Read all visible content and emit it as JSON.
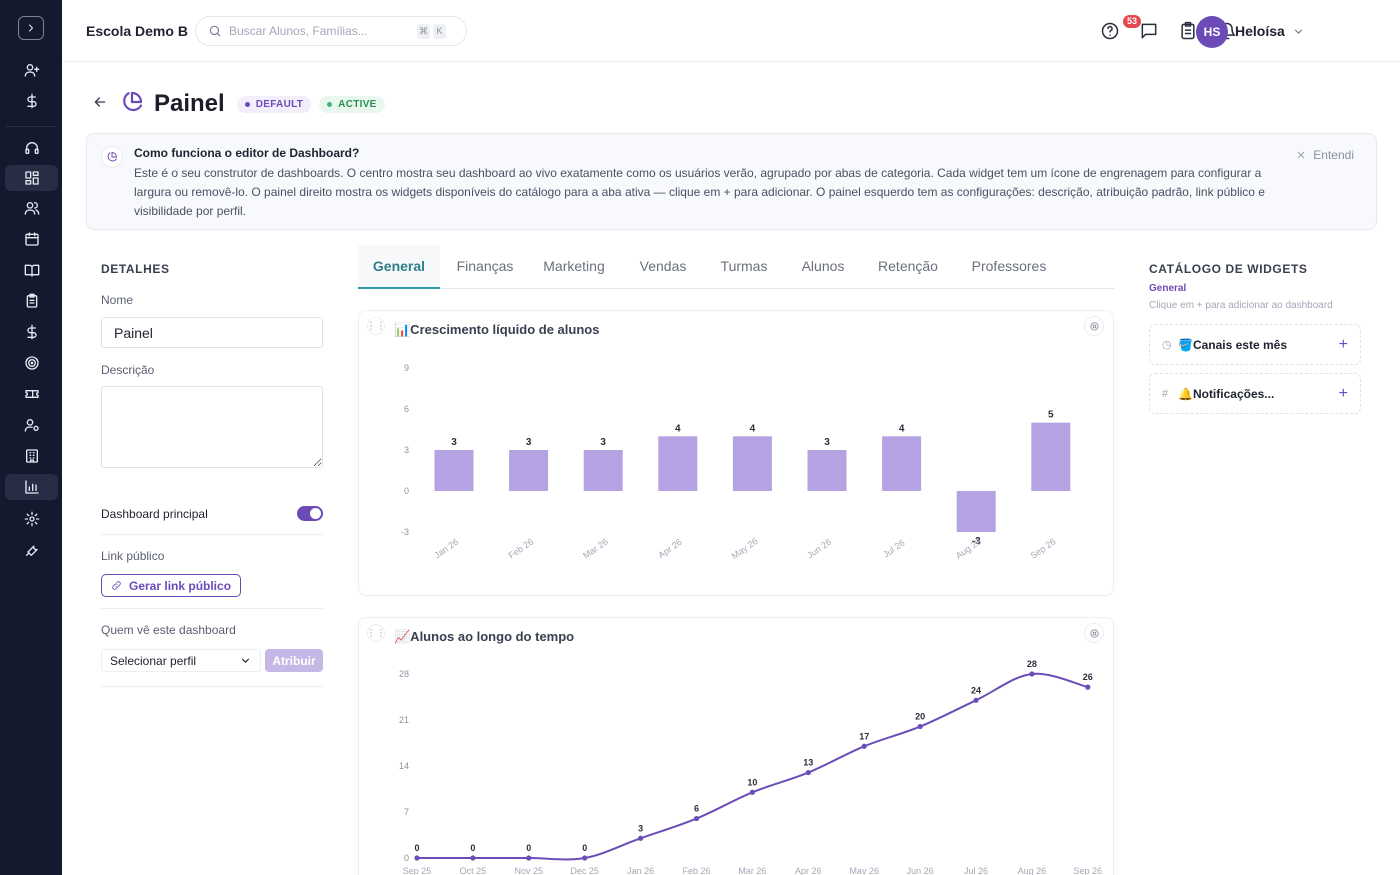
{
  "header": {
    "school_name": "Escola Demo B",
    "search_placeholder": "Buscar Alunos, Famílias...",
    "shortcut_keys": [
      "⌘",
      "K"
    ],
    "notification_badge": "53",
    "user_initials": "HS",
    "user_name": "Heloísa"
  },
  "sidebar": {
    "icons": [
      "chevron-right-icon",
      "user-plus-icon",
      "dollar-icon",
      "headset-icon",
      "dashboard-grid-icon",
      "users-icon",
      "calendar-icon",
      "book-icon",
      "clipboard-icon",
      "dollar-icon",
      "target-icon",
      "ticket-icon",
      "user-gear-icon",
      "building-icon",
      "bar-chart-icon",
      "settings-icon",
      "wrench-icon"
    ]
  },
  "page": {
    "title": "Painel",
    "badge_default": "DEFAULT",
    "badge_active": "ACTIVE"
  },
  "info_box": {
    "title": "Como funciona o editor de Dashboard?",
    "body": "Este é o seu construtor de dashboards. O centro mostra seu dashboard ao vivo exatamente como os usuários verão, agrupado por abas de categoria. Cada widget tem um ícone de engrenagem para configurar a largura ou removê-lo. O painel direito mostra os widgets disponíveis do catálogo para a aba ativa — clique em + para adicionar. O painel esquerdo tem as configurações: descrição, atribuição padrão, link público e visibilidade por perfil.",
    "dismiss_label": "Entendi"
  },
  "details": {
    "section_title": "DETALHES",
    "name_label": "Nome",
    "name_value": "Painel",
    "description_label": "Descrição",
    "description_value": "",
    "main_dashboard_label": "Dashboard principal",
    "main_dashboard_on": true,
    "public_link_label": "Link público",
    "public_link_button": "Gerar link público",
    "visibility_label": "Quem vê este dashboard",
    "profile_select_value": "Selecionar perfil",
    "assign_button": "Atribuir"
  },
  "tabs": [
    {
      "label": "General",
      "active": true
    },
    {
      "label": "Finanças",
      "active": false
    },
    {
      "label": "Marketing",
      "active": false
    },
    {
      "label": "Vendas",
      "active": false
    },
    {
      "label": "Turmas",
      "active": false
    },
    {
      "label": "Alunos",
      "active": false
    },
    {
      "label": "Retenção",
      "active": false
    },
    {
      "label": "Professores",
      "active": false
    }
  ],
  "widgets": {
    "growth_title": "📊Crescimento líquido de alunos",
    "students_title": "📈Alunos ao longo do tempo"
  },
  "catalog": {
    "title": "CATÁLOGO DE WIDGETS",
    "active_tab": "General",
    "hint": "Clique em + para adicionar ao dashboard",
    "items": [
      {
        "label": "🪣Canais este mês",
        "icon": "pie-icon"
      },
      {
        "label": "🔔Notificações...",
        "icon": "hash-icon"
      }
    ]
  },
  "colors": {
    "accent": "#6c4bb8",
    "bar": "#b4a2e2",
    "line": "#6b4db8",
    "tab_active": "#2f7f8a",
    "sidebar_bg": "#141a2e"
  },
  "chart_data": [
    {
      "type": "bar",
      "title": "📊Crescimento líquido de alunos",
      "categories": [
        "Jan 26",
        "Feb 26",
        "Mar 26",
        "Apr 26",
        "May 26",
        "Jun 26",
        "Jul 26",
        "Aug 26",
        "Sep 26"
      ],
      "values": [
        3,
        3,
        3,
        4,
        4,
        3,
        4,
        -3,
        5
      ],
      "yticks": [
        -3,
        0,
        3,
        6,
        9
      ],
      "ylim": [
        -3,
        9
      ]
    },
    {
      "type": "line",
      "title": "📈Alunos ao longo do tempo",
      "categories": [
        "Sep 25",
        "Oct 25",
        "Nov 25",
        "Dec 25",
        "Jan 26",
        "Feb 26",
        "Mar 26",
        "Apr 26",
        "May 26",
        "Jun 26",
        "Jul 26",
        "Aug 26",
        "Sep 26"
      ],
      "values": [
        0,
        0,
        0,
        0,
        3,
        6,
        10,
        13,
        17,
        20,
        24,
        28,
        26
      ],
      "yticks": [
        0,
        7,
        14,
        21,
        28
      ],
      "ylim": [
        0,
        28
      ]
    }
  ]
}
